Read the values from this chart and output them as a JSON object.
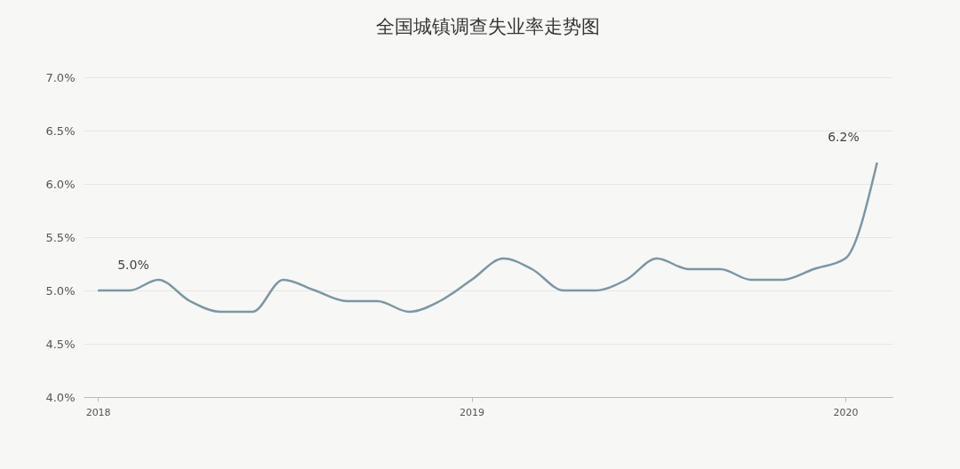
{
  "chart_data": {
    "type": "line",
    "title": "全国城镇调查失业率走势图",
    "x": [
      "2018-01",
      "2018-02",
      "2018-03",
      "2018-04",
      "2018-05",
      "2018-06",
      "2018-07",
      "2018-08",
      "2018-09",
      "2018-10",
      "2018-11",
      "2018-12",
      "2019-01",
      "2019-02",
      "2019-03",
      "2019-04",
      "2019-05",
      "2019-06",
      "2019-07",
      "2019-08",
      "2019-09",
      "2019-10",
      "2019-11",
      "2019-12",
      "2020-01",
      "2020-02"
    ],
    "series": [
      {
        "color": "#7c96a4",
        "values": [
          5.0,
          5.0,
          5.1,
          4.9,
          4.8,
          4.8,
          5.1,
          5.0,
          4.9,
          4.9,
          4.8,
          4.9,
          5.1,
          5.3,
          5.2,
          5.0,
          5.0,
          5.1,
          5.3,
          5.2,
          5.2,
          5.1,
          5.1,
          5.2,
          5.3,
          6.2
        ]
      }
    ],
    "xlim": [
      "2017-12-18",
      "2020-02-16"
    ],
    "xticks": [
      {
        "value": "2018-01",
        "label": "2018"
      },
      {
        "value": "2019-01",
        "label": "2019"
      },
      {
        "value": "2020-01",
        "label": "2020"
      }
    ],
    "ylim": [
      4.0,
      7.0
    ],
    "yticks": [
      {
        "value": 4.0,
        "label": "4.0%"
      },
      {
        "value": 4.5,
        "label": "4.5%"
      },
      {
        "value": 5.0,
        "label": "5.0%"
      },
      {
        "value": 5.5,
        "label": "5.5%"
      },
      {
        "value": 6.0,
        "label": "6.0%"
      },
      {
        "value": 6.5,
        "label": "6.5%"
      },
      {
        "value": 7.0,
        "label": "7.0%"
      }
    ],
    "grid": "y",
    "marker": "none",
    "line_style": "solid",
    "annotations": [
      {
        "text": "5.0%",
        "x": "2018-01",
        "y": 5.0
      },
      {
        "text": "6.2%",
        "x": "2020-02",
        "y": 6.2
      }
    ]
  }
}
